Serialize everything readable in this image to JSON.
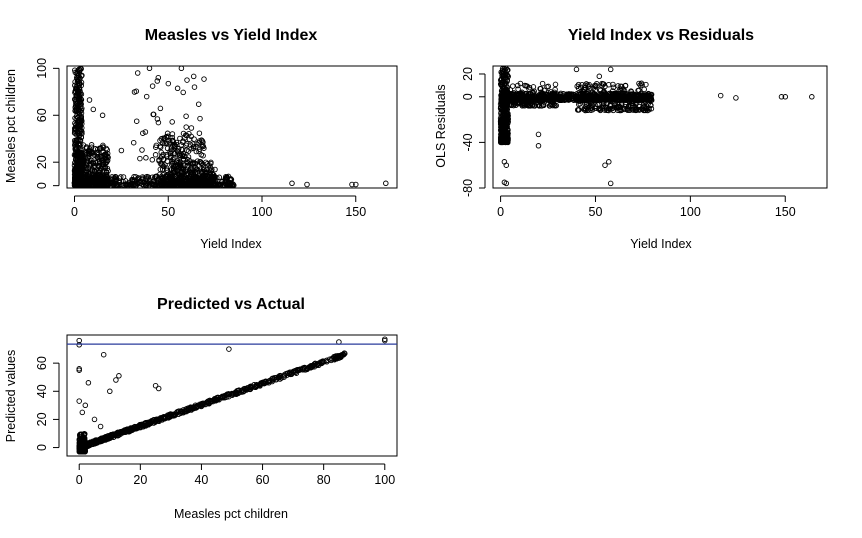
{
  "figure": {
    "background": "#ffffff",
    "point_color": "#000000",
    "reference_line_color": "#2a3b9c"
  },
  "chart_data": [
    {
      "id": "p1",
      "type": "scatter",
      "title": "Measles vs Yield Index",
      "xlabel": "Yield Index",
      "ylabel": "Measles pct children",
      "xlim": [
        -4,
        172
      ],
      "ylim": [
        -2,
        102
      ],
      "xticks": [
        0,
        50,
        100,
        150
      ],
      "yticks": [
        0,
        20,
        60,
        100
      ],
      "grid": false,
      "marker": "open-circle",
      "clusters": [
        {
          "x": [
            0,
            4
          ],
          "y": [
            0,
            100
          ],
          "n": 420
        },
        {
          "x": [
            0,
            4
          ],
          "y": [
            0,
            8
          ],
          "n": 250
        },
        {
          "x": [
            2,
            18
          ],
          "y": [
            0,
            35
          ],
          "n": 320
        },
        {
          "x": [
            0,
            85
          ],
          "y": [
            0,
            8
          ],
          "n": 420
        },
        {
          "x": [
            45,
            70
          ],
          "y": [
            0,
            45
          ],
          "n": 260
        },
        {
          "x": [
            50,
            75
          ],
          "y": [
            0,
            20
          ],
          "n": 180
        },
        {
          "x": [
            30,
            70
          ],
          "y": [
            20,
            100
          ],
          "n": 45
        }
      ],
      "points": [
        {
          "x": 116,
          "y": 2
        },
        {
          "x": 124,
          "y": 1
        },
        {
          "x": 148,
          "y": 1
        },
        {
          "x": 150,
          "y": 1
        },
        {
          "x": 166,
          "y": 2
        },
        {
          "x": 40,
          "y": 100
        },
        {
          "x": 57,
          "y": 100
        },
        {
          "x": 50,
          "y": 87
        },
        {
          "x": 55,
          "y": 83
        },
        {
          "x": 60,
          "y": 90
        },
        {
          "x": 64,
          "y": 84
        },
        {
          "x": 10,
          "y": 65
        },
        {
          "x": 15,
          "y": 60
        },
        {
          "x": 8,
          "y": 73
        },
        {
          "x": 25,
          "y": 30
        }
      ]
    },
    {
      "id": "p2",
      "type": "scatter",
      "title": "Yield Index vs Residuals",
      "xlabel": "Yield Index",
      "ylabel": "OLS Residuals",
      "xlim": [
        -4,
        172
      ],
      "ylim": [
        -80,
        27
      ],
      "xticks": [
        0,
        50,
        100,
        150
      ],
      "yticks": [
        -80,
        -40,
        0,
        20
      ],
      "grid": false,
      "marker": "open-circle",
      "clusters": [
        {
          "x": [
            0,
            4
          ],
          "y": [
            -40,
            25
          ],
          "n": 420
        },
        {
          "x": [
            0,
            80
          ],
          "y": [
            -3,
            3
          ],
          "n": 700
        },
        {
          "x": [
            40,
            80
          ],
          "y": [
            -12,
            12
          ],
          "n": 240
        },
        {
          "x": [
            5,
            30
          ],
          "y": [
            -8,
            12
          ],
          "n": 140
        }
      ],
      "points": [
        {
          "x": 2,
          "y": -75
        },
        {
          "x": 3,
          "y": -76
        },
        {
          "x": 2,
          "y": -57
        },
        {
          "x": 3,
          "y": -60
        },
        {
          "x": 20,
          "y": -33
        },
        {
          "x": 20,
          "y": -43
        },
        {
          "x": 55,
          "y": -60
        },
        {
          "x": 57,
          "y": -57
        },
        {
          "x": 58,
          "y": -76
        },
        {
          "x": 116,
          "y": 1
        },
        {
          "x": 124,
          "y": -1
        },
        {
          "x": 148,
          "y": 0
        },
        {
          "x": 150,
          "y": 0
        },
        {
          "x": 164,
          "y": 0
        },
        {
          "x": 40,
          "y": 24
        },
        {
          "x": 58,
          "y": 24
        },
        {
          "x": 52,
          "y": 18
        }
      ]
    },
    {
      "id": "p3",
      "type": "scatter",
      "title": "Predicted vs Actual",
      "xlabel": "Measles pct children",
      "ylabel": "Predicted values",
      "xlim": [
        -4,
        104
      ],
      "ylim": [
        -6,
        80
      ],
      "xticks": [
        0,
        20,
        40,
        60,
        80,
        100
      ],
      "yticks": [
        0,
        20,
        40,
        60
      ],
      "grid": false,
      "marker": "open-circle",
      "hline": 73.5,
      "trend": {
        "slope": 0.76,
        "intercept": 0,
        "x_range": [
          0,
          87
        ],
        "n": 700,
        "jitter": 1.2
      },
      "clusters": [
        {
          "x": [
            0,
            2
          ],
          "y": [
            -3,
            10
          ],
          "n": 200
        }
      ],
      "points": [
        {
          "x": 0,
          "y": 76
        },
        {
          "x": 0,
          "y": 73
        },
        {
          "x": 0,
          "y": 56
        },
        {
          "x": 0,
          "y": 55
        },
        {
          "x": 0,
          "y": 33
        },
        {
          "x": 1,
          "y": 25
        },
        {
          "x": 2,
          "y": 30
        },
        {
          "x": 3,
          "y": 46
        },
        {
          "x": 8,
          "y": 66
        },
        {
          "x": 10,
          "y": 40
        },
        {
          "x": 12,
          "y": 48
        },
        {
          "x": 13,
          "y": 51
        },
        {
          "x": 25,
          "y": 44
        },
        {
          "x": 26,
          "y": 42
        },
        {
          "x": 49,
          "y": 70
        },
        {
          "x": 85,
          "y": 75
        },
        {
          "x": 86,
          "y": 66
        },
        {
          "x": 100,
          "y": 77
        },
        {
          "x": 100,
          "y": 76
        },
        {
          "x": 5,
          "y": 20
        },
        {
          "x": 7,
          "y": 15
        }
      ]
    }
  ]
}
